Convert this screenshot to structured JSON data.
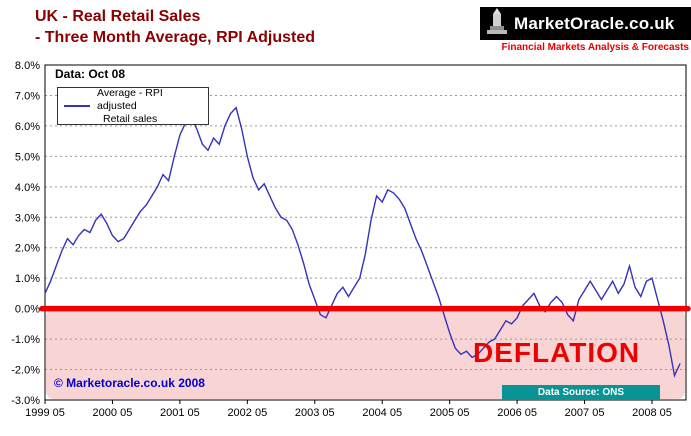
{
  "header": {
    "title_line1": "UK - Real Retail Sales",
    "title_line2": "- Three Month Average, RPI Adjusted",
    "brand": "MarketOracle.co.uk",
    "tagline": "Financial Markets Analysis & Forecasts"
  },
  "chart": {
    "data_label": "Data: Oct 08",
    "legend_line1": "Average - RPI adjusted",
    "legend_line2": "Retail sales",
    "deflation_label": "DEFLATION",
    "copyright": "© Marketoracle.co.uk 2008",
    "data_source": "Data Source: ONS"
  },
  "colors": {
    "title": "#8b0000",
    "tagline": "#e60000",
    "line": "#3333bb",
    "zero_line": "#ee0000",
    "deflation_fill": "#f7c9c9",
    "deflation_text": "#ee0000",
    "copyright": "#0000cc",
    "source_bg": "#089494",
    "banner_bg": "#000000"
  },
  "chart_data": {
    "type": "line",
    "title": "UK - Real Retail Sales - Three Month Average, RPI Adjusted",
    "xlabel": "",
    "ylabel": "",
    "ylim": [
      -3,
      8
    ],
    "grid": "horizontal-dashed",
    "legend_position": "top-left",
    "x_frequency": "monthly",
    "x_start": "1999-05",
    "x_end": "2008-10",
    "x_tick_labels": [
      "1999 05",
      "2000 05",
      "2001 05",
      "2002 05",
      "2003 05",
      "2004 05",
      "2005 05",
      "2006 05",
      "2007 05",
      "2008 05"
    ],
    "y_ticks": [
      {
        "value": 8,
        "label": "8.0%"
      },
      {
        "value": 7,
        "label": "7.0%"
      },
      {
        "value": 6,
        "label": "6.0%"
      },
      {
        "value": 5,
        "label": "5.0%"
      },
      {
        "value": 4,
        "label": "4.0%"
      },
      {
        "value": 3,
        "label": "3.0%"
      },
      {
        "value": 2,
        "label": "2.0%"
      },
      {
        "value": 1,
        "label": "1.0%"
      },
      {
        "value": 0,
        "label": "0.0%"
      },
      {
        "value": -1,
        "label": "-1.0%"
      },
      {
        "value": -2,
        "label": "-2.0%"
      },
      {
        "value": -3,
        "label": "-3.0%"
      }
    ],
    "series": [
      {
        "name": "Average - RPI adjusted Retail sales",
        "values": [
          0.5,
          0.9,
          1.4,
          1.9,
          2.3,
          2.1,
          2.4,
          2.6,
          2.5,
          2.9,
          3.1,
          2.8,
          2.4,
          2.2,
          2.3,
          2.6,
          2.9,
          3.2,
          3.4,
          3.7,
          4.0,
          4.4,
          4.2,
          5.0,
          5.7,
          6.1,
          6.3,
          5.9,
          5.4,
          5.2,
          5.6,
          5.4,
          6.0,
          6.4,
          6.6,
          5.9,
          5.0,
          4.3,
          3.9,
          4.1,
          3.7,
          3.3,
          3.0,
          2.9,
          2.6,
          2.1,
          1.5,
          0.8,
          0.3,
          -0.2,
          -0.3,
          0.1,
          0.5,
          0.7,
          0.4,
          0.7,
          1.0,
          1.8,
          2.9,
          3.7,
          3.5,
          3.9,
          3.8,
          3.6,
          3.3,
          2.8,
          2.3,
          1.9,
          1.4,
          0.9,
          0.4,
          -0.2,
          -0.8,
          -1.3,
          -1.5,
          -1.4,
          -1.6,
          -1.5,
          -1.3,
          -1.1,
          -1.0,
          -0.7,
          -0.4,
          -0.5,
          -0.3,
          0.1,
          0.3,
          0.5,
          0.1,
          -0.1,
          0.2,
          0.4,
          0.2,
          -0.2,
          -0.4,
          0.3,
          0.6,
          0.9,
          0.6,
          0.3,
          0.6,
          0.9,
          0.5,
          0.8,
          1.4,
          0.7,
          0.4,
          0.9,
          1.0,
          0.3,
          -0.4,
          -1.2,
          -2.2,
          -1.8
        ]
      }
    ],
    "annotations": [
      {
        "text": "DEFLATION",
        "region": "shaded band below 0%"
      },
      {
        "text": "Data: Oct 08",
        "position": "top-left"
      },
      {
        "text": "Data Source: ONS",
        "position": "bottom-right"
      }
    ],
    "zero_line": {
      "value": 0,
      "style": "thick-red"
    }
  }
}
